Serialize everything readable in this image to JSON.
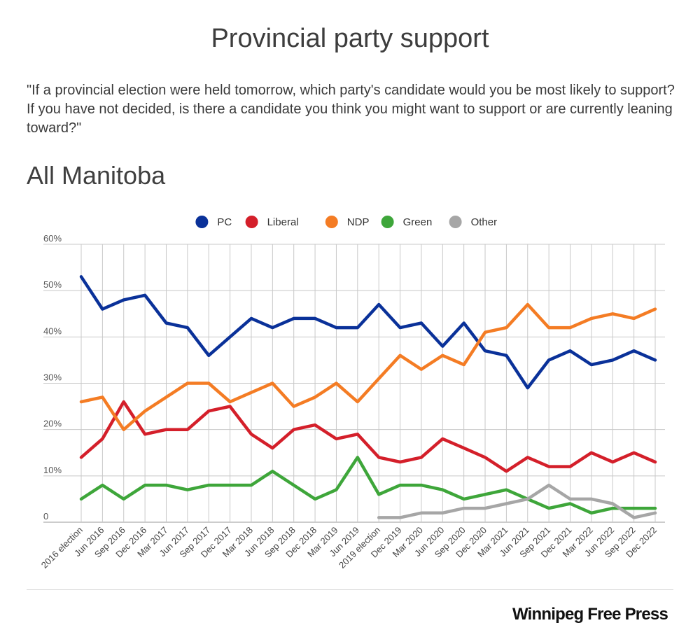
{
  "title": "Provincial party support",
  "question": "\"If a provincial election were held tomorrow, which party's candidate would you be most likely to support? If you have not decided, is there a candidate you think you might want to support or are currently leaning toward?\"",
  "subtitle": "All Manitoba",
  "source": "Winnipeg Free Press",
  "chart_data": {
    "type": "line",
    "categories": [
      "2016 election",
      "Jun 2016",
      "Sep 2016",
      "Dec 2016",
      "Mar 2017",
      "Jun 2017",
      "Sep 2017",
      "Dec 2017",
      "Mar 2018",
      "Jun 2018",
      "Sep 2018",
      "Dec 2018",
      "Mar 2019",
      "Jun 2019",
      "2019 election",
      "Dec 2019",
      "Mar 2020",
      "Jun 2020",
      "Sep 2020",
      "Dec 2020",
      "Mar 2021",
      "Jun 2021",
      "Sep 2021",
      "Dec 2021",
      "Mar 2022",
      "Jun 2022",
      "Sep 2022",
      "Dec 2022"
    ],
    "y_ticks": [
      {
        "value": 0,
        "label": "0"
      },
      {
        "value": 10,
        "label": "10%"
      },
      {
        "value": 20,
        "label": "20%"
      },
      {
        "value": 30,
        "label": "30%"
      },
      {
        "value": 40,
        "label": "40%"
      },
      {
        "value": 50,
        "label": "50%"
      },
      {
        "value": 60,
        "label": "60%"
      }
    ],
    "ylim": [
      0,
      60
    ],
    "grid": true,
    "legend_position": "top",
    "series": [
      {
        "name": "PC",
        "color": "#0a3199",
        "values": [
          53,
          46,
          48,
          49,
          43,
          42,
          36,
          40,
          44,
          42,
          44,
          44,
          42,
          42,
          47,
          42,
          43,
          38,
          43,
          37,
          36,
          29,
          35,
          37,
          34,
          35,
          37,
          35
        ]
      },
      {
        "name": "Liberal",
        "color": "#d41f2a",
        "values": [
          14,
          18,
          26,
          19,
          20,
          20,
          24,
          25,
          19,
          16,
          20,
          21,
          18,
          19,
          14,
          13,
          14,
          18,
          16,
          14,
          11,
          14,
          12,
          12,
          15,
          13,
          15,
          13
        ]
      },
      {
        "name": "NDP",
        "color": "#f47c24",
        "values": [
          26,
          27,
          20,
          24,
          27,
          30,
          30,
          26,
          28,
          30,
          25,
          27,
          30,
          26,
          31,
          36,
          33,
          36,
          34,
          41,
          42,
          47,
          42,
          42,
          44,
          45,
          44,
          46
        ]
      },
      {
        "name": "Green",
        "color": "#3ea63a",
        "values": [
          5,
          8,
          5,
          8,
          8,
          7,
          8,
          8,
          8,
          11,
          8,
          5,
          7,
          14,
          6,
          8,
          8,
          7,
          5,
          6,
          7,
          5,
          3,
          4,
          2,
          3,
          3,
          3
        ]
      },
      {
        "name": "Other",
        "color": "#a6a6a6",
        "values": [
          null,
          null,
          null,
          null,
          null,
          null,
          null,
          null,
          null,
          null,
          null,
          null,
          null,
          null,
          1,
          1,
          2,
          2,
          3,
          3,
          4,
          5,
          8,
          5,
          5,
          4,
          1,
          2
        ]
      }
    ]
  }
}
